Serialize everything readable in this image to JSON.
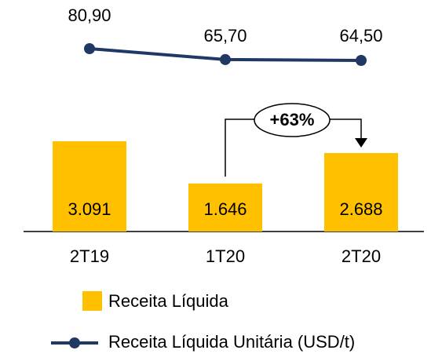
{
  "chart_data": {
    "type": "bar",
    "categories": [
      "2T19",
      "1T20",
      "2T20"
    ],
    "series": [
      {
        "name": "Receita Líquida",
        "type": "bar",
        "color": "#ffc000",
        "values": [
          3091,
          1646,
          2688
        ],
        "value_labels": [
          "3.091",
          "1.646",
          "2.688"
        ]
      },
      {
        "name": "Receita Líquida Unitária (USD/t)",
        "type": "line",
        "axis": "y2",
        "color": "#1f3864",
        "values": [
          80.9,
          65.7,
          64.5
        ],
        "value_labels": [
          "80,90",
          "65,70",
          "64,50"
        ]
      }
    ],
    "annotations": [
      {
        "text": "+63%"
      }
    ]
  }
}
